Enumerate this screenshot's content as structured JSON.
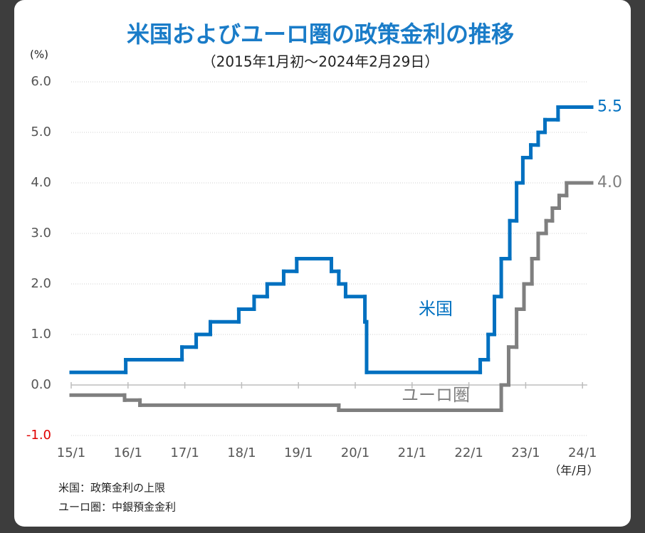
{
  "chart_data": {
    "type": "step-line",
    "title": "米国およびユーロ圏の政策金利の推移",
    "subtitle": "（2015年1月初～2024年2月29日）",
    "y_unit": "(%)",
    "x_unit": "（年/月）",
    "notes": [
      "米国：政策金利の上限",
      "ユーロ圏：中銀預金金利"
    ],
    "xlim": [
      2015,
      2024.16
    ],
    "ylim": [
      -1,
      6
    ],
    "xticks": [
      {
        "value": 2015,
        "label": "15/1"
      },
      {
        "value": 2016,
        "label": "16/1"
      },
      {
        "value": 2017,
        "label": "17/1"
      },
      {
        "value": 2018,
        "label": "18/1"
      },
      {
        "value": 2019,
        "label": "19/1"
      },
      {
        "value": 2020,
        "label": "20/1"
      },
      {
        "value": 2021,
        "label": "21/1"
      },
      {
        "value": 2022,
        "label": "22/1"
      },
      {
        "value": 2023,
        "label": "23/1"
      },
      {
        "value": 2024,
        "label": "24/1"
      }
    ],
    "yticks": [
      {
        "value": -1,
        "label": "-1.0"
      },
      {
        "value": 0,
        "label": "0.0"
      },
      {
        "value": 1,
        "label": "1.0"
      },
      {
        "value": 2,
        "label": "2.0"
      },
      {
        "value": 3,
        "label": "3.0"
      },
      {
        "value": 4,
        "label": "4.0"
      },
      {
        "value": 5,
        "label": "5.0"
      },
      {
        "value": 6,
        "label": "6.0"
      }
    ],
    "grid": true,
    "series": [
      {
        "name": "米国",
        "color": "#0070c0",
        "x": [
          2015,
          2015.96,
          2016.95,
          2017.2,
          2017.45,
          2017.95,
          2018.22,
          2018.45,
          2018.74,
          2018.97,
          2019.58,
          2019.71,
          2019.83,
          2020.17,
          2020.2,
          2022.2,
          2022.34,
          2022.45,
          2022.57,
          2022.72,
          2022.84,
          2022.95,
          2023.09,
          2023.22,
          2023.34,
          2023.57,
          2024.16
        ],
        "values": [
          0.25,
          0.5,
          0.75,
          1.0,
          1.25,
          1.5,
          1.75,
          2.0,
          2.25,
          2.5,
          2.25,
          2.0,
          1.75,
          1.25,
          0.25,
          0.5,
          1.0,
          1.75,
          2.5,
          3.25,
          4.0,
          4.5,
          4.75,
          5.0,
          5.25,
          5.5,
          5.5
        ],
        "value_labels": [
          null,
          null,
          null,
          null,
          null,
          null,
          null,
          null,
          null,
          null,
          null,
          null,
          null,
          null,
          null,
          null,
          null,
          null,
          null,
          null,
          null,
          null,
          null,
          null,
          null,
          null,
          "5.5"
        ]
      },
      {
        "name": "ユーロ圏",
        "color": "#7f7f7f",
        "x": [
          2015,
          2015.94,
          2016.21,
          2019.71,
          2022.57,
          2022.7,
          2022.84,
          2022.97,
          2023.11,
          2023.22,
          2023.36,
          2023.47,
          2023.59,
          2023.72,
          2024.16
        ],
        "values": [
          -0.2,
          -0.3,
          -0.4,
          -0.5,
          0.0,
          0.75,
          1.5,
          2.0,
          2.5,
          3.0,
          3.25,
          3.5,
          3.75,
          4.0,
          4.0
        ],
        "value_labels": [
          null,
          null,
          null,
          null,
          null,
          null,
          null,
          null,
          null,
          null,
          null,
          null,
          null,
          null,
          "4.0"
        ]
      }
    ]
  }
}
